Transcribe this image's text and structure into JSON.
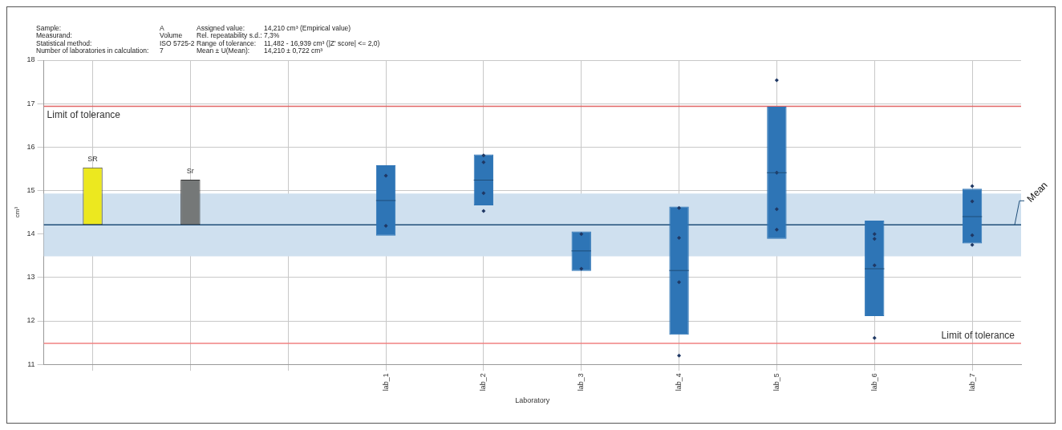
{
  "chart_data": {
    "type": "bar",
    "annotations": [
      "Sample:",
      "A",
      "Assigned value:",
      "14,210 cm³ (Empirical value)",
      "Measurand:",
      "Volume",
      "Rel. repeatability s.d.:",
      "7,3%",
      "Statistical method:",
      "ISO 5725-2",
      "Range of tolerance:",
      "11,482 - 16,939 cm³ (|Z' score| <= 2,0)",
      "Number of laboratories in calculation:",
      "7",
      "Mean ± U(Mean):",
      "14,210 ± 0,722 cm³"
    ],
    "xlabel": "Laboratory",
    "ylabel": "cm³",
    "categories": [
      null,
      null,
      null,
      "lab_1",
      "lab_2",
      "lab_3",
      "lab_4",
      "lab_5",
      "lab_6",
      "lab_7"
    ],
    "series": [
      {
        "name": "SR",
        "color": "#ece81f",
        "values": [
          1.32,
          null,
          null,
          null,
          null,
          null,
          null,
          null,
          null,
          null
        ],
        "base": [
          14.21,
          null,
          null,
          null,
          null,
          null,
          null,
          null,
          null,
          null
        ]
      },
      {
        "name": "Sr",
        "color": "#757878",
        "values": [
          null,
          1.04,
          null,
          null,
          null,
          null,
          null,
          null,
          null,
          null
        ],
        "base": [
          null,
          14.21,
          null,
          null,
          null,
          null,
          null,
          null,
          null,
          null
        ]
      },
      {
        "type": "box",
        "color": "#2e75b6",
        "boxes": [
          null,
          null,
          null,
          {
            "low": 13.96,
            "q1": 13.96,
            "median": 14.77,
            "q3": 15.58,
            "high": 15.58
          },
          {
            "low": 14.66,
            "q1": 14.66,
            "median": 15.24,
            "q3": 15.83,
            "high": 15.83
          },
          {
            "low": 13.15,
            "q1": 13.15,
            "median": 13.61,
            "q3": 14.06,
            "high": 14.06
          },
          {
            "low": 11.68,
            "q1": 11.68,
            "median": 13.16,
            "q3": 14.63,
            "high": 14.63
          },
          {
            "low": 13.89,
            "q1": 13.89,
            "median": 15.41,
            "q3": 16.93,
            "high": 16.93
          },
          {
            "low": 12.11,
            "q1": 12.11,
            "median": 13.2,
            "q3": 14.31,
            "high": 14.31
          },
          {
            "low": 13.78,
            "q1": 13.78,
            "median": 14.4,
            "q3": 15.04,
            "high": 15.04
          }
        ]
      },
      {
        "type": "scatter",
        "color": "#1f3864",
        "marker": "diamond",
        "x": [
          "lab_1",
          "lab_1",
          "lab_2",
          "lab_2",
          "lab_2",
          "lab_2",
          "lab_3",
          "lab_3",
          "lab_4",
          "lab_4",
          "lab_4",
          "lab_4",
          "lab_5",
          "lab_5",
          "lab_5",
          "lab_5",
          "lab_6",
          "lab_6",
          "lab_6",
          "lab_6",
          "lab_7",
          "lab_7",
          "lab_7",
          "lab_7"
        ],
        "values": [
          15.34,
          14.19,
          15.81,
          15.65,
          14.94,
          14.53,
          14.0,
          13.2,
          14.6,
          13.91,
          12.89,
          11.2,
          17.54,
          15.41,
          14.57,
          14.1,
          14.0,
          13.89,
          13.28,
          11.61,
          15.1,
          14.75,
          13.97,
          13.75
        ]
      }
    ],
    "ylim": [
      11,
      18
    ],
    "yticks": [
      11,
      12,
      13,
      14,
      15,
      16,
      17,
      18
    ],
    "bands": [
      {
        "axis": "y",
        "from": 13.488,
        "to": 14.932,
        "color": "#cfe0ef"
      }
    ],
    "ref_lines": [
      {
        "axis": "y",
        "value": 16.939,
        "label": "Limit of tolerance",
        "color": "#e06666"
      },
      {
        "axis": "y",
        "value": 14.21,
        "label": "Mean",
        "color": "#1f4e79"
      },
      {
        "axis": "y",
        "value": 11.482,
        "label": "Limit of tolerance",
        "color": "#f08080"
      }
    ],
    "grid": true,
    "legend": false
  }
}
